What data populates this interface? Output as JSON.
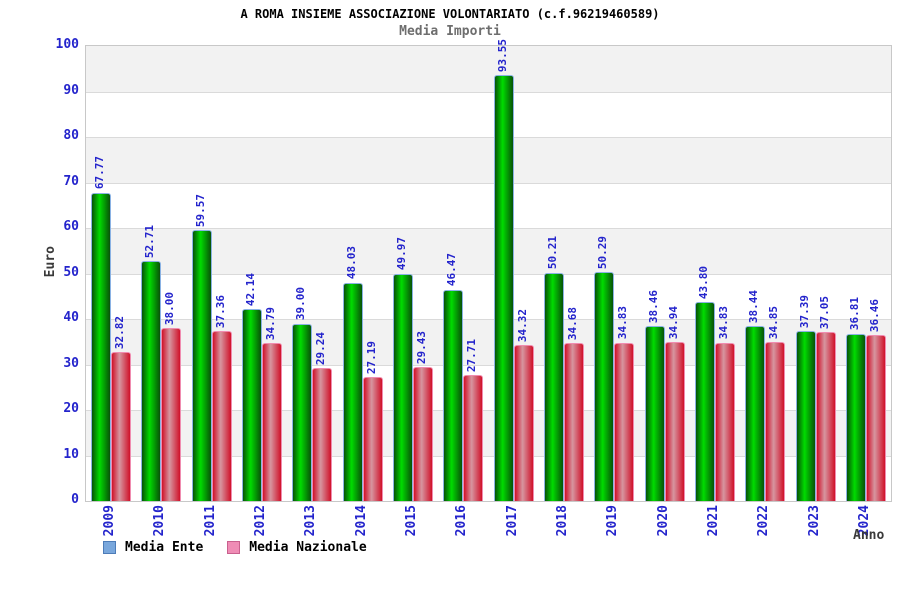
{
  "title": "A ROMA INSIEME ASSOCIAZIONE VOLONTARIATO (c.f.96219460589)",
  "subtitle": "Media Importi",
  "chart_data": {
    "type": "bar",
    "categories": [
      "2009",
      "2010",
      "2011",
      "2012",
      "2013",
      "2014",
      "2015",
      "2016",
      "2017",
      "2018",
      "2019",
      "2020",
      "2021",
      "2022",
      "2023",
      "2024"
    ],
    "series": [
      {
        "name": "Media Ente",
        "values": [
          67.77,
          52.71,
          59.57,
          42.14,
          39.0,
          48.03,
          49.97,
          46.47,
          93.55,
          50.21,
          50.29,
          38.46,
          43.8,
          38.44,
          37.39,
          36.81
        ]
      },
      {
        "name": "Media Nazionale",
        "values": [
          32.82,
          38.0,
          37.36,
          34.79,
          29.24,
          27.19,
          29.43,
          27.71,
          34.32,
          34.68,
          34.83,
          34.94,
          34.83,
          34.85,
          37.05,
          36.46
        ]
      }
    ],
    "ylabel": "Euro",
    "xlabel": "Anno",
    "ylim": [
      0,
      100
    ],
    "ytick_step": 10,
    "value_label_decimals": 2,
    "grid": true,
    "band_stripes": true,
    "legend_position": "bottom"
  },
  "colors": {
    "text_blue": "#2424cc",
    "axis_title_gray": "#3a3a3a",
    "subtitle_gray": "#6e6e6e",
    "band_gray": "#f2f2f2",
    "band_white": "#ffffff",
    "gridline": "#dadada",
    "plot_border": "#c8c8c8"
  },
  "series_styles": [
    {
      "edge": "#085208",
      "center": "#00dc00",
      "border": "#8ab2e4"
    },
    {
      "edge": "#d01129",
      "center": "#d696a0",
      "border": "#f08cb0"
    }
  ],
  "legend_swatches": [
    {
      "fill": "#79a7dc",
      "border": "#4d7cb8"
    },
    {
      "fill": "#ef8cb5",
      "border": "#c9608e"
    }
  ]
}
